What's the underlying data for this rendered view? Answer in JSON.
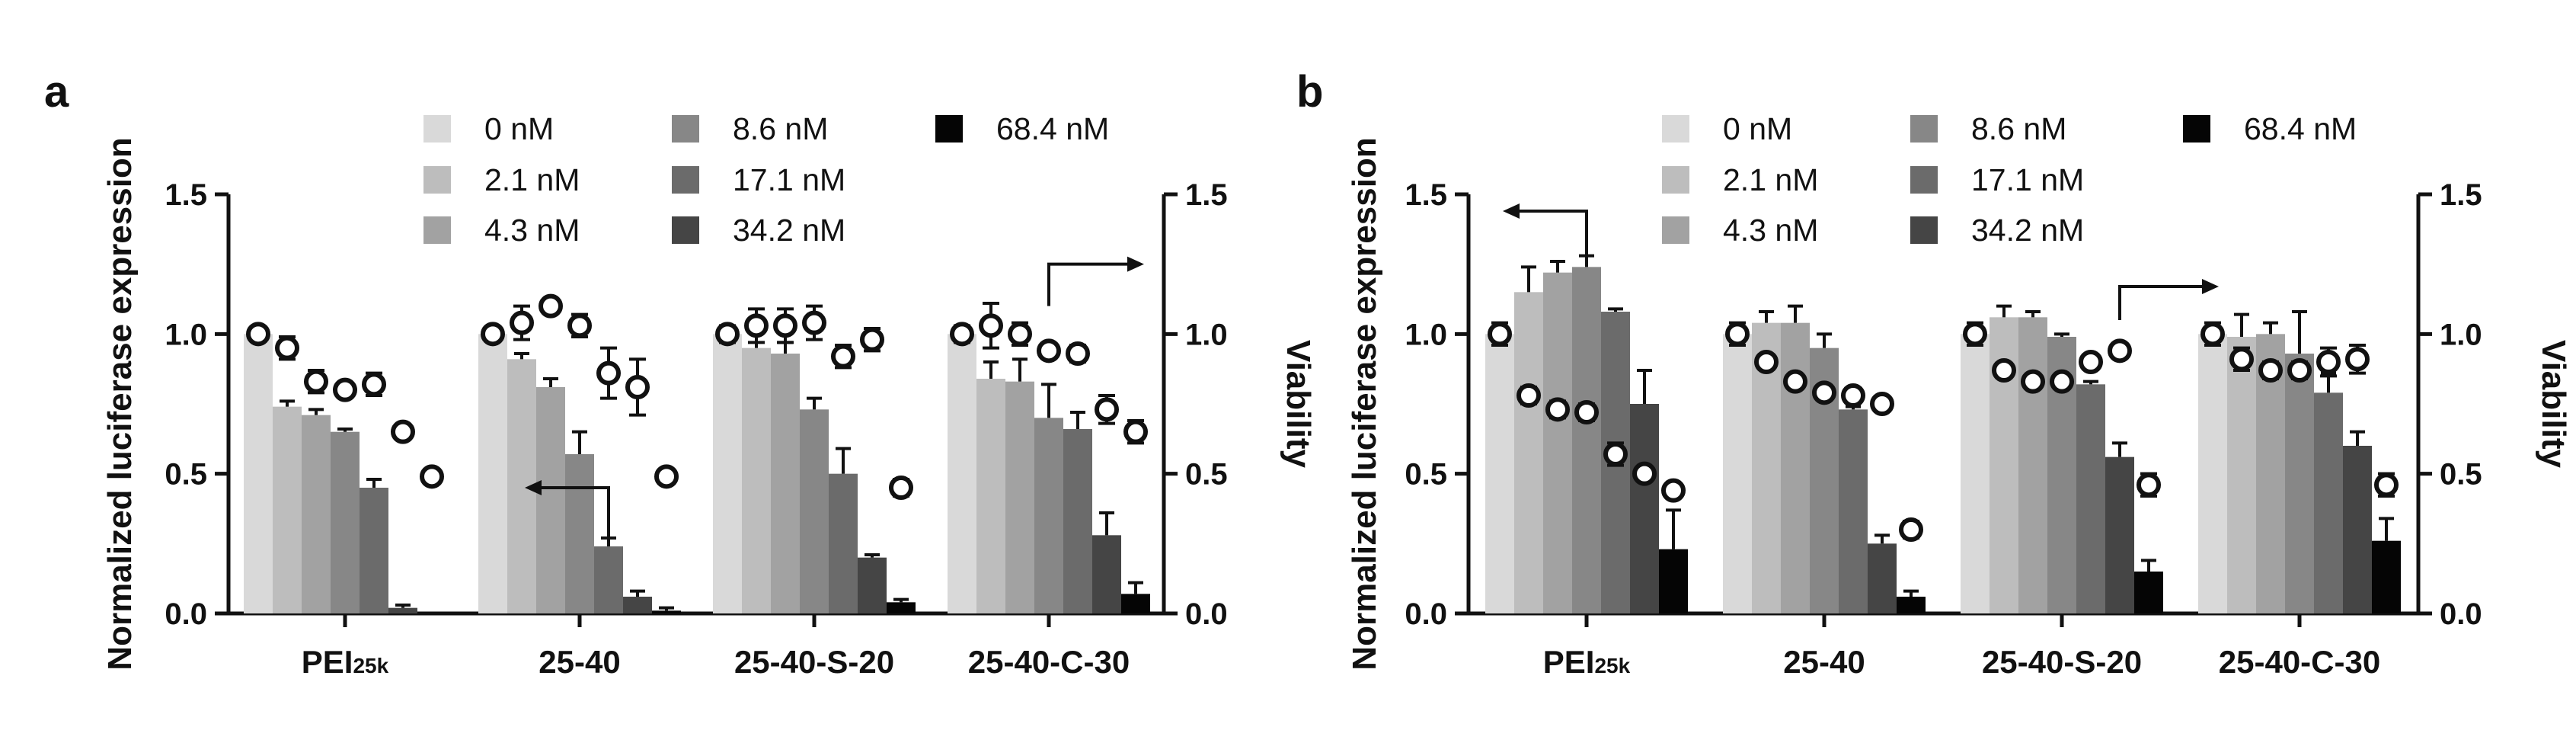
{
  "figure_labels": [
    "a",
    "b"
  ],
  "subscript_note": "25k",
  "legend": [
    {
      "label": "0 nM",
      "color": "#d9d9d9"
    },
    {
      "label": "2.1 nM",
      "color": "#bdbdbd"
    },
    {
      "label": "4.3 nM",
      "color": "#a2a2a2"
    },
    {
      "label": "8.6 nM",
      "color": "#878787"
    },
    {
      "label": "17.1 nM",
      "color": "#6b6b6b"
    },
    {
      "label": "34.2 nM",
      "color": "#454545"
    },
    {
      "label": "68.4 nM",
      "color": "#050505"
    }
  ],
  "chart_data": [
    {
      "panel": "a",
      "type": "bar",
      "ylabel": "Normalized luciferase expression",
      "y2label": "Viability",
      "ylim": [
        0,
        1.5
      ],
      "y2lim": [
        0,
        1.5
      ],
      "yticks": [
        "0.0",
        "0.5",
        "1.0",
        "1.5"
      ],
      "categories": [
        "PEI25k",
        "25-40",
        "25-40-S-20",
        "25-40-C-30"
      ],
      "category_display": [
        {
          "main": "PEI",
          "sub": "25k"
        },
        {
          "main": "25-40",
          "sub": ""
        },
        {
          "main": "25-40-S-20",
          "sub": ""
        },
        {
          "main": "25-40-C-30",
          "sub": ""
        }
      ],
      "series": [
        {
          "name": "0 nM",
          "values": [
            1.0,
            1.0,
            1.0,
            1.0
          ],
          "errors": [
            0,
            0,
            0,
            0
          ]
        },
        {
          "name": "2.1 nM",
          "values": [
            0.74,
            0.91,
            0.95,
            0.84
          ],
          "errors": [
            0.02,
            0.02,
            0.08,
            0.06
          ]
        },
        {
          "name": "4.3 nM",
          "values": [
            0.71,
            0.81,
            0.93,
            0.83
          ],
          "errors": [
            0.02,
            0.03,
            0.04,
            0.08
          ]
        },
        {
          "name": "8.6 nM",
          "values": [
            0.65,
            0.57,
            0.73,
            0.7
          ],
          "errors": [
            0.01,
            0.08,
            0.04,
            0.12
          ]
        },
        {
          "name": "17.1 nM",
          "values": [
            0.45,
            0.24,
            0.5,
            0.66
          ],
          "errors": [
            0.03,
            0.03,
            0.09,
            0.06
          ]
        },
        {
          "name": "34.2 nM",
          "values": [
            0.02,
            0.06,
            0.2,
            0.28
          ],
          "errors": [
            0.01,
            0.02,
            0.01,
            0.08
          ]
        },
        {
          "name": "68.4 nM",
          "values": [
            0.0,
            0.01,
            0.04,
            0.07
          ],
          "errors": [
            0,
            0.01,
            0.01,
            0.04
          ]
        }
      ],
      "viability": [
        {
          "values": [
            1.0,
            0.95,
            0.83,
            0.8,
            0.82,
            0.65,
            0.49
          ],
          "errors": [
            0.02,
            0.04,
            0.04,
            0.01,
            0.04,
            0,
            0
          ]
        },
        {
          "values": [
            1.0,
            1.04,
            1.1,
            1.03,
            0.86,
            0.81,
            0.49
          ],
          "errors": [
            0.02,
            0.06,
            0.02,
            0.04,
            0.09,
            0.1,
            0
          ]
        },
        {
          "values": [
            1.0,
            1.03,
            1.03,
            1.04,
            0.92,
            0.98,
            0.45
          ],
          "errors": [
            0.03,
            0.06,
            0.06,
            0.06,
            0.04,
            0.04,
            0.03
          ]
        },
        {
          "values": [
            1.0,
            1.03,
            1.0,
            0.94,
            0.93,
            0.73,
            0.65
          ],
          "errors": [
            0.03,
            0.08,
            0.04,
            0.02,
            0.03,
            0.05,
            0.04
          ]
        }
      ],
      "annotations": [
        {
          "type": "arrow",
          "direction": "left",
          "points_to": "left axis",
          "group": "25-40"
        },
        {
          "type": "arrow",
          "direction": "right",
          "points_to": "right axis",
          "group": "25-40-C-30"
        }
      ]
    },
    {
      "panel": "b",
      "type": "bar",
      "ylabel": "Normalized luciferase expression",
      "y2label": "Viability",
      "ylim": [
        0,
        1.5
      ],
      "y2lim": [
        0,
        1.5
      ],
      "yticks": [
        "0.0",
        "0.5",
        "1.0",
        "1.5"
      ],
      "categories": [
        "PEI25k",
        "25-40",
        "25-40-S-20",
        "25-40-C-30"
      ],
      "category_display": [
        {
          "main": "PEI",
          "sub": "25k"
        },
        {
          "main": "25-40",
          "sub": ""
        },
        {
          "main": "25-40-S-20",
          "sub": ""
        },
        {
          "main": "25-40-C-30",
          "sub": ""
        }
      ],
      "series": [
        {
          "name": "0 nM",
          "values": [
            1.0,
            1.0,
            1.0,
            1.0
          ],
          "errors": [
            0,
            0,
            0,
            0
          ]
        },
        {
          "name": "2.1 nM",
          "values": [
            1.15,
            1.04,
            1.06,
            0.99
          ],
          "errors": [
            0.09,
            0.04,
            0.04,
            0.08
          ]
        },
        {
          "name": "4.3 nM",
          "values": [
            1.22,
            1.04,
            1.06,
            1.0
          ],
          "errors": [
            0.04,
            0.06,
            0.02,
            0.04
          ]
        },
        {
          "name": "8.6 nM",
          "values": [
            1.24,
            0.95,
            0.99,
            0.93
          ],
          "errors": [
            0.04,
            0.05,
            0.01,
            0.15
          ]
        },
        {
          "name": "17.1 nM",
          "values": [
            1.08,
            0.73,
            0.82,
            0.79
          ],
          "errors": [
            0.01,
            0.01,
            0.01,
            0.07
          ]
        },
        {
          "name": "34.2 nM",
          "values": [
            0.75,
            0.25,
            0.56,
            0.6
          ],
          "errors": [
            0.12,
            0.03,
            0.05,
            0.05
          ]
        },
        {
          "name": "68.4 nM",
          "values": [
            0.23,
            0.06,
            0.15,
            0.26
          ],
          "errors": [
            0.14,
            0.02,
            0.04,
            0.08
          ]
        }
      ],
      "viability": [
        {
          "values": [
            1.0,
            0.78,
            0.73,
            0.72,
            0.57,
            0.5,
            0.44
          ],
          "errors": [
            0.04,
            0.03,
            0.03,
            0.03,
            0.04,
            0,
            0
          ]
        },
        {
          "values": [
            1.0,
            0.9,
            0.83,
            0.79,
            0.78,
            0.75,
            0.3
          ],
          "errors": [
            0.04,
            0,
            0,
            0,
            0,
            0,
            0.03
          ]
        },
        {
          "values": [
            1.0,
            0.87,
            0.83,
            0.83,
            0.9,
            0.94,
            0.46
          ],
          "errors": [
            0.04,
            0,
            0,
            0,
            0.02,
            0.02,
            0.04
          ]
        },
        {
          "values": [
            1.0,
            0.91,
            0.87,
            0.87,
            0.9,
            0.91,
            0.46
          ],
          "errors": [
            0.04,
            0.04,
            0.03,
            0.03,
            0.05,
            0.05,
            0.04
          ]
        }
      ],
      "annotations": [
        {
          "type": "arrow",
          "direction": "left",
          "points_to": "left axis",
          "group": "PEI25k"
        },
        {
          "type": "arrow",
          "direction": "right",
          "points_to": "right axis",
          "group": "25-40-S-20"
        }
      ]
    }
  ]
}
